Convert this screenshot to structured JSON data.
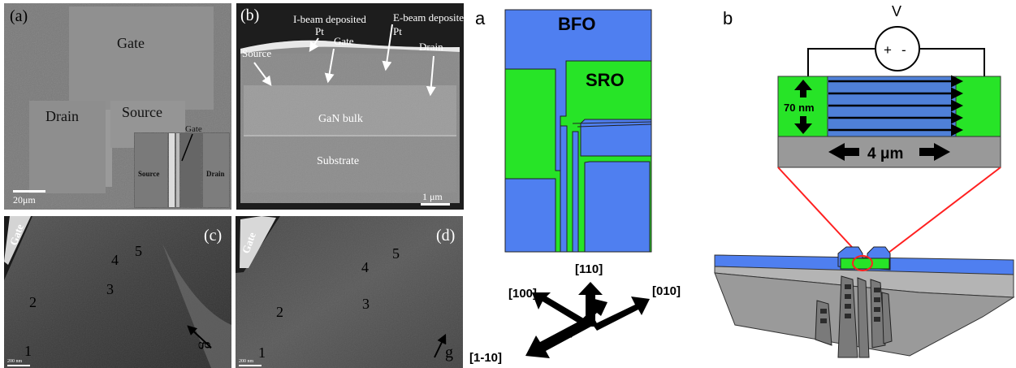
{
  "left_figure": {
    "panels": {
      "a": {
        "label": "(a)",
        "gate": "Gate",
        "drain": "Drain",
        "source": "Source",
        "inset_gate": "Gate",
        "inset_source": "Source",
        "inset_drain": "Drain",
        "scale_bar": "20μm"
      },
      "b": {
        "label": "(b)",
        "ibeam_line1": "I-beam deposited",
        "ibeam_line2": "Pt",
        "ebeam_line1": "E-beam deposited",
        "ebeam_line2": "Pt",
        "gate": "Gate",
        "source": "Source",
        "drain": "Drain",
        "gan_bulk": "GaN bulk",
        "substrate": "Substrate",
        "scale_bar": "1 μm"
      },
      "c": {
        "label": "(c)",
        "gate": "Gate",
        "numbers": [
          "1",
          "2",
          "3",
          "4",
          "5"
        ],
        "g": "g",
        "scale_bar": "200 nm"
      },
      "d": {
        "label": "(d)",
        "gate": "Gate",
        "numbers": [
          "1",
          "2",
          "3",
          "4",
          "5"
        ],
        "g": "g",
        "scale_bar": "200 nm"
      }
    }
  },
  "right_figure": {
    "panel_a": {
      "label": "a",
      "bfo": "BFO",
      "sro": "SRO",
      "directions": [
        "[110]",
        "[100]",
        "[010]",
        "[1-10]"
      ]
    },
    "panel_b": {
      "label": "b",
      "voltage": "V",
      "plus": "+",
      "minus": "-",
      "thickness": "70 nm",
      "length": "4 μm"
    }
  },
  "colors": {
    "bfo_blue": "#4f7ff0",
    "sro_green": "#27e427",
    "substrate_gray": "#999999",
    "bulk_gray": "#a9a9a9",
    "callout_red": "#ff2020",
    "arrow_black": "#000000"
  }
}
